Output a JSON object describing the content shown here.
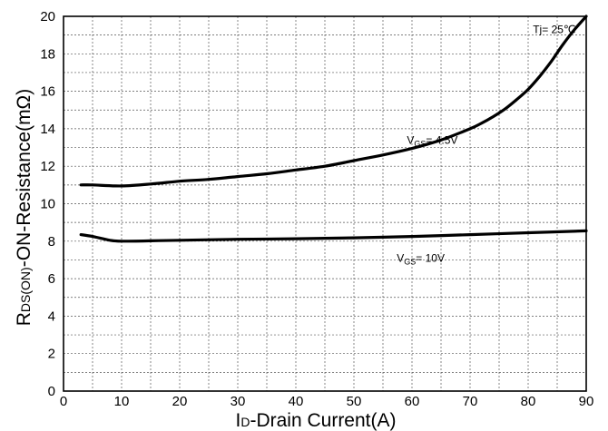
{
  "chart_data": {
    "type": "line",
    "title": "",
    "xlabel": {
      "main": "I",
      "subscript": "D",
      "rest": "-Drain Current(A)"
    },
    "ylabel": {
      "main": "R",
      "subscript": "DS(ON)",
      "rest": "-ON-Resistance(mΩ)"
    },
    "xlim": [
      0,
      90
    ],
    "ylim": [
      0,
      20
    ],
    "x_ticks": [
      "0",
      "10",
      "20",
      "30",
      "40",
      "50",
      "60",
      "70",
      "80",
      "90"
    ],
    "y_ticks": [
      "0",
      "2",
      "4",
      "6",
      "8",
      "10",
      "12",
      "14",
      "16",
      "18",
      "20"
    ],
    "x_tick_values": [
      0,
      10,
      20,
      30,
      40,
      50,
      60,
      70,
      80,
      90
    ],
    "y_tick_values": [
      0,
      2,
      4,
      6,
      8,
      10,
      12,
      14,
      16,
      18,
      20
    ],
    "x_minor_step": 5,
    "y_minor_step": 1,
    "grid": true,
    "legend": "none",
    "annotations": [
      {
        "text": "Tj= 25℃",
        "x": 84.5,
        "y": 19.1
      }
    ],
    "series": [
      {
        "label_main": "V",
        "label_sub": "GS",
        "label_rest": "= 4.5V",
        "label_x": 63.5,
        "label_y": 13.2,
        "x": [
          3,
          5,
          10,
          15,
          20,
          25,
          30,
          35,
          40,
          45,
          50,
          55,
          60,
          65,
          70,
          72,
          74,
          76,
          78,
          80,
          82,
          84,
          86,
          88,
          90
        ],
        "y": [
          11.0,
          11.0,
          10.95,
          11.05,
          11.2,
          11.3,
          11.45,
          11.6,
          11.8,
          12.0,
          12.3,
          12.6,
          12.95,
          13.4,
          14.0,
          14.3,
          14.65,
          15.05,
          15.55,
          16.1,
          16.8,
          17.6,
          18.5,
          19.3,
          20.0
        ]
      },
      {
        "label_main": "V",
        "label_sub": "GS",
        "label_rest": "= 10V",
        "label_x": 61.5,
        "label_y": 6.9,
        "x": [
          3,
          5,
          8,
          10,
          15,
          20,
          30,
          40,
          50,
          60,
          70,
          80,
          90
        ],
        "y": [
          8.35,
          8.25,
          8.05,
          8.0,
          8.02,
          8.05,
          8.1,
          8.13,
          8.18,
          8.25,
          8.35,
          8.45,
          8.55
        ]
      }
    ]
  }
}
